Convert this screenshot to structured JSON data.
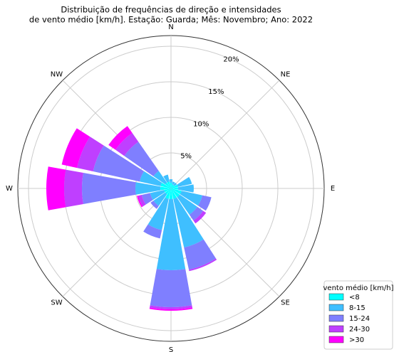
{
  "chart_data": {
    "type": "windrose",
    "title": [
      "Distribuição de frequências de direção e intensidades",
      "de vento médio [km/h]. Estação: Guarda; Mês: Novembro; Ano: 2022"
    ],
    "categories": [
      "N",
      null,
      "NE",
      null,
      "E",
      null,
      "SE",
      null,
      "S",
      null,
      "SW",
      null,
      "W",
      null,
      "NW",
      null
    ],
    "rlim": [
      0,
      21.5
    ],
    "rticks": [
      {
        "value": 5,
        "label": "5%"
      },
      {
        "value": 10,
        "label": "10%"
      },
      {
        "value": 15,
        "label": "15%"
      },
      {
        "value": 20,
        "label": "20%"
      }
    ],
    "legend_title": "vento médio [km/h]",
    "legend_position": "lower right",
    "grid": true,
    "series": [
      {
        "name": "<8",
        "color": "#00ffff",
        "values": [
          0.8,
          0.6,
          0.6,
          1,
          1,
          1.5,
          1.5,
          1.5,
          1.5,
          1.5,
          1,
          1,
          1.5,
          1.5,
          1,
          1
        ]
      },
      {
        "name": "8-15",
        "color": "#3fbfff",
        "values": [
          0.5,
          0.4,
          0.4,
          2,
          2.2,
          3,
          3,
          7,
          10,
          4.5,
          2,
          2,
          3.5,
          3,
          2,
          1
        ]
      },
      {
        "name": "15-24",
        "color": "#7f7fff",
        "values": [
          0,
          0,
          0,
          0,
          0,
          1.3,
          1,
          3.2,
          5.2,
          1.2,
          0.5,
          1.2,
          7.5,
          6.7,
          5,
          0
        ]
      },
      {
        "name": "24-30",
        "color": "#bf3fff",
        "values": [
          0,
          0,
          0,
          0,
          0,
          0,
          0.5,
          0.2,
          0.3,
          0,
          0,
          0.5,
          2.5,
          2.3,
          1.5,
          0
        ]
      },
      {
        "name": ">30",
        "color": "#ff00ff",
        "values": [
          0,
          0,
          0,
          0,
          0,
          0,
          0,
          0,
          0.2,
          0,
          0,
          0.2,
          2.5,
          2.2,
          1.2,
          0
        ]
      }
    ]
  }
}
